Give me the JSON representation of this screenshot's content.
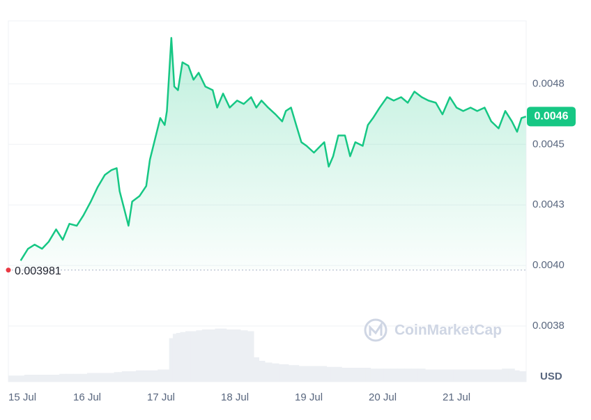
{
  "chart_data": {
    "type": "area",
    "x": [
      15.1,
      15.2,
      15.29,
      15.39,
      15.48,
      15.58,
      15.67,
      15.76,
      15.86,
      15.95,
      16.05,
      16.14,
      16.24,
      16.33,
      16.4,
      16.44,
      16.5,
      16.56,
      16.61,
      16.71,
      16.8,
      16.85,
      16.92,
      16.99,
      17.05,
      17.08,
      17.14,
      17.18,
      17.23,
      17.29,
      17.37,
      17.44,
      17.51,
      17.6,
      17.7,
      17.76,
      17.84,
      17.93,
      18.03,
      18.12,
      18.22,
      18.29,
      18.36,
      18.45,
      18.55,
      18.64,
      18.69,
      18.76,
      18.83,
      18.9,
      18.97,
      19.07,
      19.16,
      19.21,
      19.27,
      19.33,
      19.4,
      19.49,
      19.56,
      19.63,
      19.73,
      19.8,
      19.87,
      19.96,
      20.06,
      20.15,
      20.25,
      20.34,
      20.43,
      20.53,
      20.62,
      20.72,
      20.81,
      20.91,
      21.0,
      21.09,
      21.19,
      21.28,
      21.38,
      21.47,
      21.57,
      21.66,
      21.75,
      21.82,
      21.88,
      21.94
    ],
    "series": [
      {
        "color": "#16c784",
        "values": [
          0.00402,
          0.004069,
          0.004086,
          0.004069,
          0.004098,
          0.004149,
          0.004106,
          0.004172,
          0.004164,
          0.004207,
          0.004264,
          0.004322,
          0.004374,
          0.004394,
          0.004402,
          0.004307,
          0.004236,
          0.004164,
          0.004264,
          0.004287,
          0.004328,
          0.004437,
          0.004523,
          0.004609,
          0.00458,
          0.004638,
          0.00494,
          0.004739,
          0.004724,
          0.004839,
          0.004825,
          0.004767,
          0.004796,
          0.004739,
          0.004724,
          0.004652,
          0.00471,
          0.004652,
          0.004681,
          0.004667,
          0.004695,
          0.004652,
          0.004681,
          0.004652,
          0.004624,
          0.004595,
          0.004638,
          0.004652,
          0.00458,
          0.004509,
          0.004494,
          0.004466,
          0.004494,
          0.004509,
          0.004408,
          0.004451,
          0.004537,
          0.004537,
          0.004451,
          0.004509,
          0.004494,
          0.00458,
          0.004609,
          0.004652,
          0.004695,
          0.004681,
          0.004695,
          0.004672,
          0.004718,
          0.004695,
          0.004681,
          0.004672,
          0.004624,
          0.004695,
          0.004652,
          0.004638,
          0.004652,
          0.004638,
          0.004652,
          0.004595,
          0.004566,
          0.004638,
          0.004595,
          0.004552,
          0.004609,
          0.004615
        ]
      }
    ],
    "xlim": [
      14.934,
      21.943
    ],
    "xticks": [
      {
        "value": 15,
        "label": "15 Jul"
      },
      {
        "value": 16,
        "label": "16 Jul"
      },
      {
        "value": 17,
        "label": "17 Jul"
      },
      {
        "value": 18,
        "label": "18 Jul"
      },
      {
        "value": 19,
        "label": "19 Jul"
      },
      {
        "value": 20,
        "label": "20 Jul"
      },
      {
        "value": 21,
        "label": "21 Jul"
      }
    ],
    "ylim": [
      0.00352,
      0.00501
    ],
    "yticks": [
      {
        "value": 0.00375,
        "label": "0.0038"
      },
      {
        "value": 0.004,
        "label": "0.0040"
      },
      {
        "value": 0.00425,
        "label": "0.0043"
      },
      0.0045,
      {
        "value": 0.00475,
        "label": "0.0048"
      }
    ],
    "grid": true,
    "baseline": 0.003981,
    "current_price_label": "0.0046",
    "currency": "USD",
    "volume": {
      "color": "#eceff3",
      "ylim": [
        0,
        80
      ],
      "values": [
        7,
        8,
        8,
        8,
        8,
        8,
        9,
        9,
        9,
        9,
        10,
        10,
        10,
        10,
        11,
        11,
        12,
        12,
        12,
        13,
        13,
        13,
        13,
        14,
        14,
        14,
        50,
        55,
        56,
        57,
        58,
        58,
        59,
        60,
        60,
        61,
        61,
        60,
        60,
        59,
        58,
        28,
        24,
        22,
        21,
        20,
        20,
        19,
        19,
        18,
        18,
        18,
        18,
        18,
        17,
        17,
        17,
        16,
        16,
        16,
        16,
        16,
        15,
        15,
        15,
        15,
        15,
        15,
        15,
        15,
        14,
        14,
        14,
        14,
        14,
        14,
        14,
        14,
        14,
        14,
        14,
        15,
        15,
        13,
        12,
        12
      ]
    },
    "watermark": "CoinMarketCap"
  }
}
